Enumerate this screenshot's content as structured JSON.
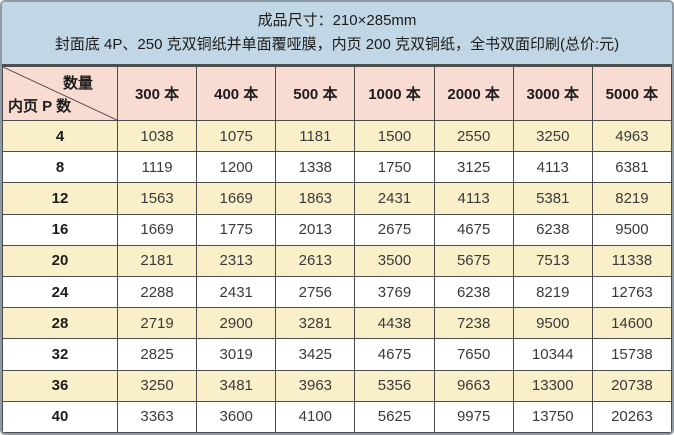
{
  "banner": {
    "line1": "成品尺寸：210×285mm",
    "line2": "封面底 4P、250 克双铜纸并单面覆哑膜，内页 200 克双铜纸，全书双面印刷(总价:元)"
  },
  "table": {
    "corner": {
      "top_label": "数量",
      "bottom_label": "内页 P 数"
    },
    "columns": [
      "300 本",
      "400 本",
      "500 本",
      "1000 本",
      "2000 本",
      "3000 本",
      "5000 本"
    ],
    "rows": [
      {
        "label": "4",
        "values": [
          "1038",
          "1075",
          "1181",
          "1500",
          "2550",
          "3250",
          "4963"
        ]
      },
      {
        "label": "8",
        "values": [
          "1119",
          "1200",
          "1338",
          "1750",
          "3125",
          "4113",
          "6381"
        ]
      },
      {
        "label": "12",
        "values": [
          "1563",
          "1669",
          "1863",
          "2431",
          "4113",
          "5381",
          "8219"
        ]
      },
      {
        "label": "16",
        "values": [
          "1669",
          "1775",
          "2013",
          "2675",
          "4675",
          "6238",
          "9500"
        ]
      },
      {
        "label": "20",
        "values": [
          "2181",
          "2313",
          "2613",
          "3500",
          "5675",
          "7513",
          "11338"
        ]
      },
      {
        "label": "24",
        "values": [
          "2288",
          "2431",
          "2756",
          "3769",
          "6238",
          "8219",
          "12763"
        ]
      },
      {
        "label": "28",
        "values": [
          "2719",
          "2900",
          "3281",
          "4438",
          "7238",
          "9500",
          "14600"
        ]
      },
      {
        "label": "32",
        "values": [
          "2825",
          "3019",
          "3425",
          "4675",
          "7650",
          "10344",
          "15738"
        ]
      },
      {
        "label": "36",
        "values": [
          "3250",
          "3481",
          "3963",
          "5356",
          "9663",
          "13300",
          "20738"
        ]
      },
      {
        "label": "40",
        "values": [
          "3363",
          "3600",
          "4100",
          "5625",
          "9975",
          "13750",
          "20263"
        ]
      }
    ]
  },
  "colors": {
    "banner_bg": "#c2d7e5",
    "header_bg": "#f8dcd2",
    "row_alt_bg": "#f9efc8",
    "row_bg": "#ffffff",
    "grid_line": "#4d4d4d",
    "frame_border": "#8e9aa4"
  }
}
